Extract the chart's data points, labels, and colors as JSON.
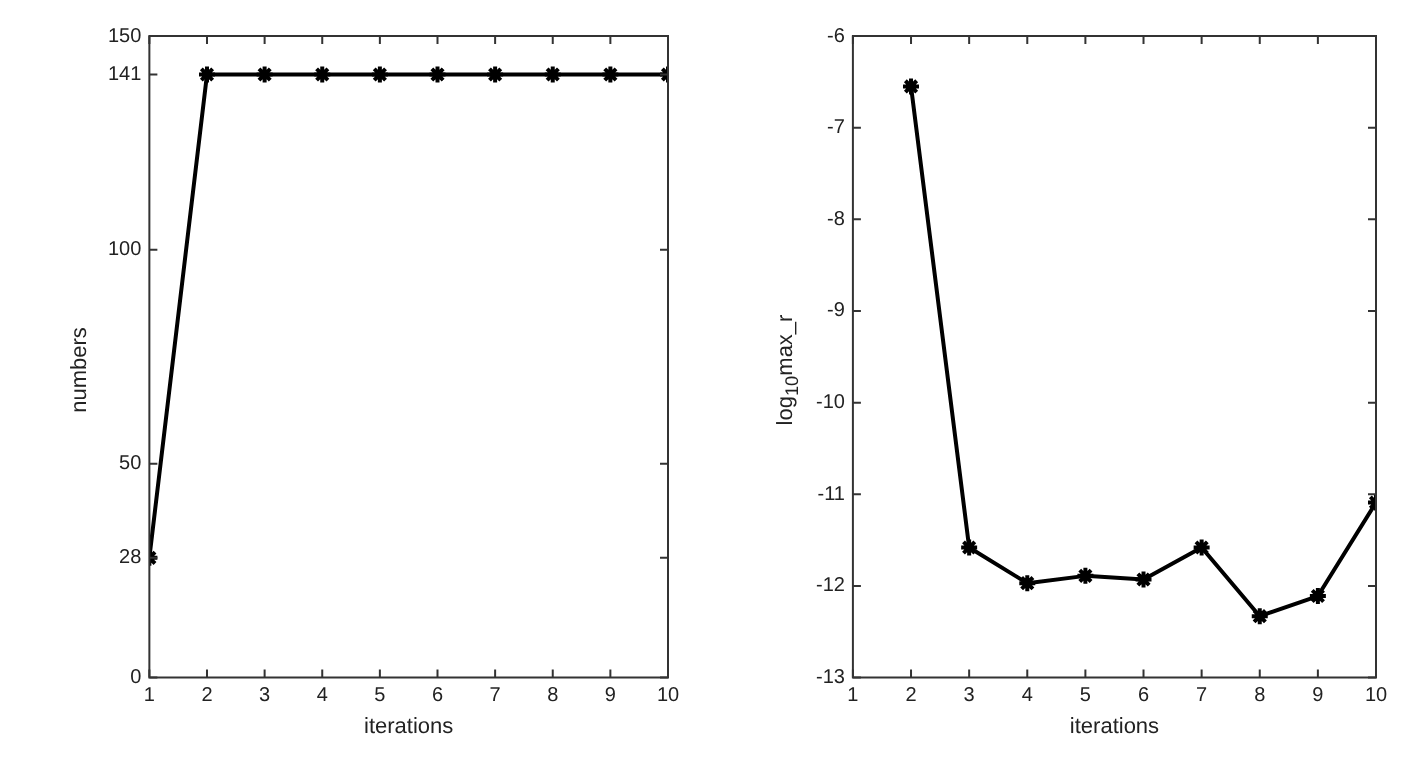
{
  "chart_data": [
    {
      "type": "line",
      "xlabel": "iterations",
      "ylabel": "numbers",
      "x": [
        1,
        2,
        3,
        4,
        5,
        6,
        7,
        8,
        9,
        10
      ],
      "series": [
        {
          "color": "#000000",
          "values": [
            28,
            141,
            141,
            141,
            141,
            141,
            141,
            141,
            141,
            141
          ]
        }
      ],
      "xlim": [
        1,
        10
      ],
      "xticks": [
        1,
        2,
        3,
        4,
        5,
        6,
        7,
        8,
        9,
        10
      ],
      "ylim": [
        0,
        150
      ],
      "yticks": [
        0,
        28,
        50,
        100,
        141,
        150
      ],
      "marker": "cross",
      "line_style": "solid",
      "grid": false,
      "legend": false
    },
    {
      "type": "line",
      "xlabel": "iterations",
      "ylabel": "log$_{10}$max_r",
      "x": [
        2,
        3,
        4,
        5,
        6,
        7,
        8,
        9,
        10
      ],
      "series": [
        {
          "color": "#000000",
          "values": [
            -6.55,
            -11.58,
            -11.97,
            -11.89,
            -11.93,
            -11.58,
            -12.33,
            -12.11,
            -11.09
          ]
        }
      ],
      "xlim": [
        1,
        10
      ],
      "xticks": [
        1,
        2,
        3,
        4,
        5,
        6,
        7,
        8,
        9,
        10
      ],
      "ylim": [
        -13,
        -6
      ],
      "yticks": [
        -13,
        -12,
        -11,
        -10,
        -9,
        -8,
        -7,
        -6
      ],
      "marker": "cross",
      "line_style": "solid",
      "grid": false,
      "legend": false
    }
  ]
}
